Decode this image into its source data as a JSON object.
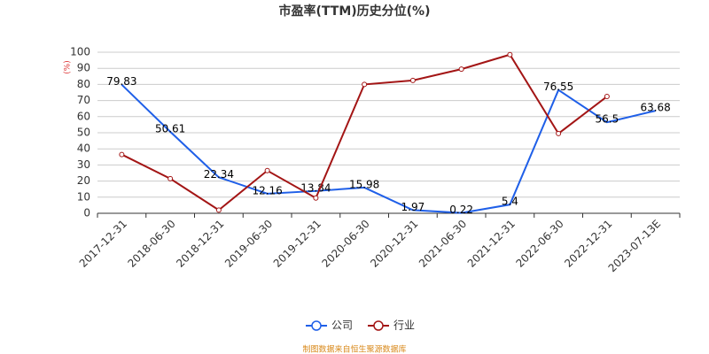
{
  "chart_data": {
    "type": "line",
    "title": "市盈率(TTM)历史分位(%)",
    "y_label": "(%)",
    "categories": [
      "2017-12-31",
      "2018-06-30",
      "2018-12-31",
      "2019-06-30",
      "2019-12-31",
      "2020-06-30",
      "2020-12-31",
      "2021-06-30",
      "2021-12-31",
      "2022-06-30",
      "2022-12-31",
      "2023-07-13E"
    ],
    "series": [
      {
        "name": "公司",
        "color": "#1f5fe8",
        "values": [
          79.83,
          50.61,
          22.34,
          12.16,
          13.84,
          15.98,
          1.97,
          0.22,
          5.4,
          76.55,
          56.5,
          63.68
        ]
      },
      {
        "name": "行业",
        "color": "#a31515",
        "values": [
          36.5,
          21.5,
          2,
          26.5,
          9.5,
          80,
          82.5,
          89.5,
          98.5,
          49.5,
          72.5,
          null
        ]
      }
    ],
    "ylim": [
      0,
      100
    ],
    "yticks": [
      0,
      10,
      20,
      30,
      40,
      50,
      60,
      70,
      80,
      90,
      100
    ],
    "grid": true,
    "legend": "bottom",
    "source": "制图数据来自恒生聚源数据库"
  }
}
